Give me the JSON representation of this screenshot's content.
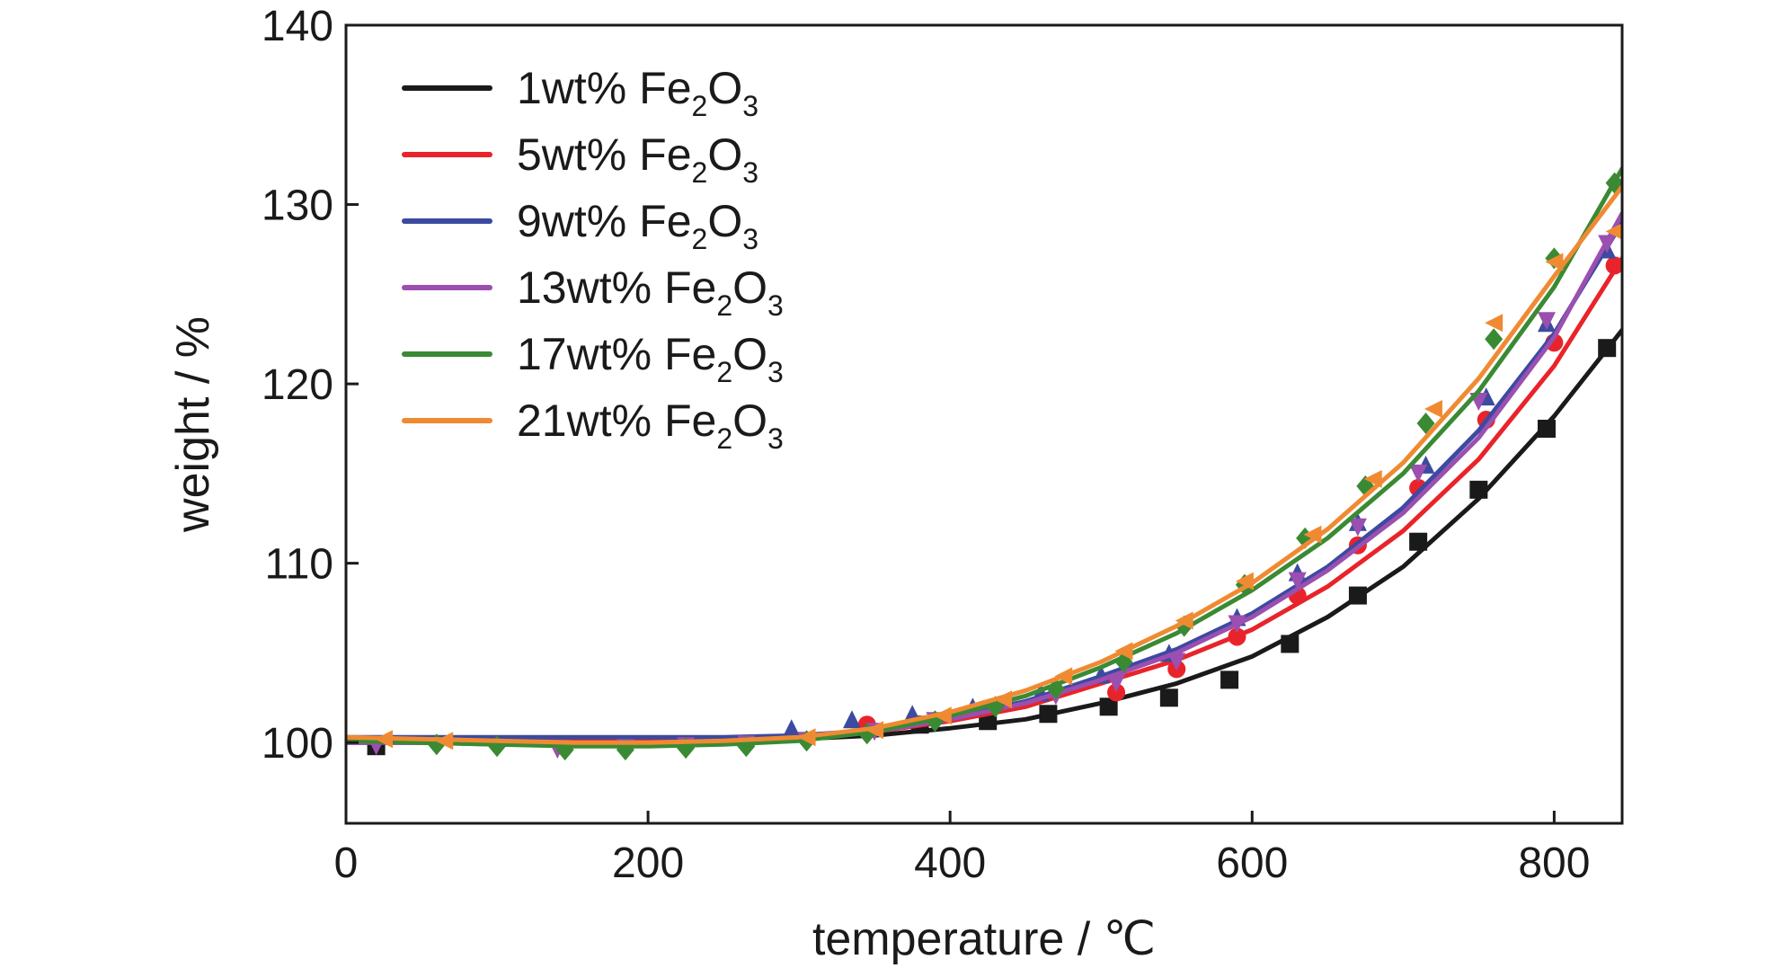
{
  "chart_data": {
    "type": "line",
    "xlabel": "temperature / ℃",
    "ylabel": "weight / %",
    "xlim": [
      0,
      845
    ],
    "ylim": [
      95.5,
      140
    ],
    "xticks": [
      0,
      200,
      400,
      600,
      800
    ],
    "yticks": [
      100,
      110,
      120,
      130,
      140
    ],
    "grid": false,
    "legend_position": "top-left",
    "series": [
      {
        "name": "1wt% Fe2O3",
        "label_parts": [
          "1wt% Fe",
          "2",
          "O",
          "3"
        ],
        "color": "#1a1a1a",
        "marker": "square",
        "x": [
          0,
          50,
          100,
          150,
          200,
          250,
          300,
          350,
          400,
          450,
          500,
          550,
          600,
          650,
          700,
          750,
          800,
          845
        ],
        "y": [
          100.0,
          100.0,
          100.0,
          100.0,
          100.0,
          100.1,
          100.2,
          100.4,
          100.8,
          101.3,
          102.2,
          103.3,
          104.8,
          107.0,
          109.8,
          113.6,
          118.2,
          123.0
        ],
        "marker_x": [
          20,
          380,
          425,
          465,
          505,
          545,
          585,
          625,
          670,
          710,
          750,
          795,
          835
        ],
        "marker_y": [
          99.8,
          101.0,
          101.2,
          101.6,
          102.0,
          102.5,
          103.5,
          105.5,
          108.2,
          111.2,
          114.1,
          117.5,
          122.0
        ]
      },
      {
        "name": "5wt% Fe2O3",
        "label_parts": [
          "5wt% Fe",
          "2",
          "O",
          "3"
        ],
        "color": "#e8242a",
        "marker": "circle",
        "x": [
          0,
          50,
          100,
          150,
          200,
          250,
          300,
          350,
          400,
          450,
          500,
          550,
          600,
          650,
          700,
          750,
          800,
          845
        ],
        "y": [
          100.2,
          100.2,
          100.2,
          100.2,
          100.2,
          100.2,
          100.3,
          100.6,
          101.2,
          102.0,
          103.3,
          104.6,
          106.3,
          108.7,
          111.8,
          115.8,
          121.0,
          127.0
        ],
        "marker_x": [
          345,
          510,
          550,
          590,
          630,
          670,
          710,
          755,
          800,
          840
        ],
        "marker_y": [
          101.0,
          102.8,
          104.1,
          105.9,
          108.2,
          111.0,
          114.2,
          118.0,
          122.3,
          126.6
        ]
      },
      {
        "name": "9wt% Fe2O3",
        "label_parts": [
          "9wt% Fe",
          "2",
          "O",
          "3"
        ],
        "color": "#3c4aa0",
        "marker": "triangle-up",
        "x": [
          0,
          50,
          100,
          150,
          200,
          250,
          300,
          350,
          400,
          450,
          500,
          550,
          600,
          650,
          700,
          750,
          800,
          845
        ],
        "y": [
          100.3,
          100.3,
          100.3,
          100.3,
          100.3,
          100.3,
          100.4,
          100.7,
          101.4,
          102.3,
          103.7,
          105.2,
          107.2,
          109.8,
          113.1,
          117.4,
          122.8,
          129.0
        ],
        "marker_x": [
          295,
          335,
          375,
          415,
          460,
          500,
          545,
          590,
          630,
          670,
          715,
          755,
          795,
          835
        ],
        "marker_y": [
          100.8,
          101.3,
          101.6,
          102.0,
          102.8,
          103.8,
          105.0,
          107.0,
          109.5,
          112.3,
          115.5,
          119.3,
          123.4,
          127.5
        ]
      },
      {
        "name": "13wt% Fe2O3",
        "label_parts": [
          "13wt% Fe",
          "2",
          "O",
          "3"
        ],
        "color": "#9b4fb0",
        "marker": "triangle-down",
        "x": [
          0,
          50,
          100,
          150,
          200,
          250,
          300,
          350,
          400,
          450,
          500,
          550,
          600,
          650,
          700,
          750,
          800,
          845
        ],
        "y": [
          100.0,
          100.0,
          99.9,
          99.9,
          99.9,
          100.0,
          100.2,
          100.6,
          101.3,
          102.2,
          103.5,
          105.0,
          107.0,
          109.6,
          112.8,
          117.0,
          122.6,
          129.5
        ],
        "marker_x": [
          20,
          60,
          100,
          140,
          185,
          225,
          265,
          305,
          350,
          390,
          430,
          470,
          510,
          550,
          590,
          630,
          670,
          710,
          750,
          795,
          835
        ],
        "marker_y": [
          99.8,
          99.8,
          99.7,
          99.6,
          99.7,
          99.8,
          99.9,
          100.1,
          100.6,
          101.2,
          101.9,
          102.6,
          103.3,
          104.5,
          106.6,
          109.0,
          112.0,
          115.0,
          119.0,
          123.5,
          127.8
        ]
      },
      {
        "name": "17wt% Fe2O3",
        "label_parts": [
          "17wt% Fe",
          "2",
          "O",
          "3"
        ],
        "color": "#3a8a34",
        "marker": "diamond",
        "x": [
          0,
          50,
          100,
          150,
          200,
          250,
          300,
          350,
          400,
          450,
          500,
          550,
          600,
          650,
          700,
          750,
          800,
          845
        ],
        "y": [
          100.1,
          100.0,
          99.9,
          99.8,
          99.8,
          99.9,
          100.1,
          100.6,
          101.5,
          102.6,
          104.2,
          106.1,
          108.5,
          111.4,
          115.0,
          119.6,
          125.4,
          132.0
        ],
        "marker_x": [
          60,
          100,
          145,
          185,
          225,
          265,
          305,
          345,
          390,
          430,
          470,
          515,
          555,
          595,
          635,
          675,
          715,
          760,
          800,
          840
        ],
        "marker_y": [
          99.9,
          99.8,
          99.6,
          99.6,
          99.7,
          99.8,
          100.1,
          100.5,
          101.2,
          102.0,
          103.0,
          104.5,
          106.5,
          108.8,
          111.4,
          114.3,
          117.8,
          122.5,
          127.0,
          131.2
        ]
      },
      {
        "name": "21wt% Fe2O3",
        "label_parts": [
          "21wt% Fe",
          "2",
          "O",
          "3"
        ],
        "color": "#f08a32",
        "marker": "triangle-left",
        "x": [
          0,
          50,
          100,
          150,
          200,
          250,
          300,
          350,
          400,
          450,
          500,
          550,
          600,
          650,
          700,
          750,
          800,
          845
        ],
        "y": [
          100.3,
          100.2,
          100.1,
          100.0,
          100.0,
          100.1,
          100.3,
          100.8,
          101.7,
          102.9,
          104.5,
          106.5,
          108.9,
          111.9,
          115.6,
          120.3,
          126.0,
          131.0
        ],
        "marker_x": [
          25,
          65,
          305,
          350,
          395,
          435,
          475,
          515,
          555,
          595,
          640,
          680,
          720,
          760,
          800,
          840
        ],
        "marker_y": [
          100.2,
          100.1,
          100.3,
          100.7,
          101.5,
          102.4,
          103.7,
          105.1,
          106.8,
          109.0,
          111.6,
          114.7,
          118.6,
          123.4,
          126.8,
          128.5
        ]
      }
    ]
  }
}
